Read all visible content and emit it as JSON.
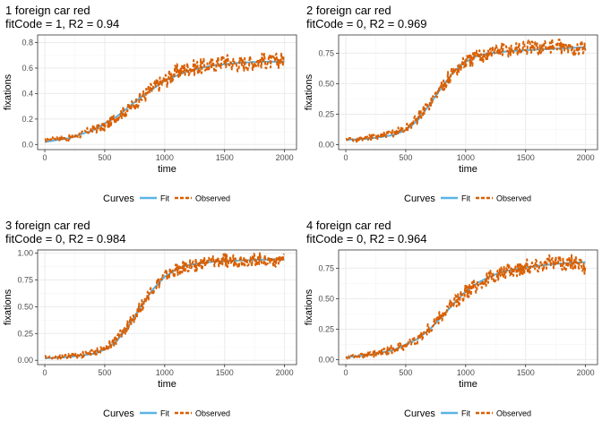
{
  "legend": {
    "title": "Curves",
    "fit_label": "Fit",
    "observed_label": "Observed"
  },
  "colors": {
    "fit": "#5ab4e5",
    "observed": "#d95f02",
    "panel_border": "#333333",
    "grid_major": "#ebebeb",
    "grid_minor": "#f5f5f5",
    "axis_text": "#4d4d4d"
  },
  "chart_data": [
    {
      "type": "line",
      "title": "1 foreign car red",
      "subtitle": "fitCode = 1, R2 = 0.94",
      "xlabel": "time",
      "ylabel": "fixations",
      "xlim": [
        -60,
        2100
      ],
      "ylim": [
        -0.04,
        0.86
      ],
      "xticks": [
        0,
        500,
        1000,
        1500,
        2000
      ],
      "yticks": [
        0.0,
        0.2,
        0.4,
        0.6,
        0.8
      ],
      "ytick_labels": [
        "0.0",
        "0.2",
        "0.4",
        "0.6",
        "0.8"
      ],
      "legend_position": "bottom",
      "grid": true,
      "fit": {
        "x": [
          0,
          200,
          400,
          600,
          800,
          1000,
          1200,
          1400,
          1600,
          1800,
          2000
        ],
        "y": [
          0.02,
          0.05,
          0.11,
          0.22,
          0.37,
          0.5,
          0.58,
          0.62,
          0.64,
          0.65,
          0.65
        ]
      },
      "observed": {
        "x": [
          0,
          100,
          200,
          300,
          400,
          500,
          600,
          700,
          800,
          900,
          1000,
          1100,
          1200,
          1300,
          1400,
          1500,
          1600,
          1700,
          1800,
          1900,
          2000
        ],
        "y": [
          0.03,
          0.05,
          0.05,
          0.08,
          0.12,
          0.14,
          0.22,
          0.28,
          0.36,
          0.44,
          0.5,
          0.57,
          0.6,
          0.61,
          0.62,
          0.66,
          0.63,
          0.64,
          0.66,
          0.65,
          0.67
        ]
      }
    },
    {
      "type": "line",
      "title": "2 foreign car red",
      "subtitle": "fitCode = 0, R2 = 0.969",
      "xlabel": "time",
      "ylabel": "fixations",
      "xlim": [
        -60,
        2100
      ],
      "ylim": [
        -0.04,
        0.9
      ],
      "xticks": [
        0,
        500,
        1000,
        1500,
        2000
      ],
      "yticks": [
        0.0,
        0.25,
        0.5,
        0.75
      ],
      "ytick_labels": [
        "0.00",
        "0.25",
        "0.50",
        "0.75"
      ],
      "legend_position": "bottom",
      "grid": true,
      "fit": {
        "x": [
          0,
          200,
          400,
          500,
          600,
          700,
          800,
          900,
          1000,
          1100,
          1200,
          1400,
          1600,
          1800,
          2000
        ],
        "y": [
          0.04,
          0.05,
          0.08,
          0.12,
          0.2,
          0.33,
          0.47,
          0.6,
          0.68,
          0.73,
          0.75,
          0.77,
          0.78,
          0.79,
          0.8
        ]
      },
      "observed": {
        "x": [
          0,
          100,
          200,
          300,
          400,
          500,
          600,
          700,
          800,
          900,
          1000,
          1100,
          1200,
          1300,
          1400,
          1500,
          1600,
          1700,
          1800,
          1900,
          2000
        ],
        "y": [
          0.05,
          0.04,
          0.06,
          0.07,
          0.1,
          0.13,
          0.22,
          0.34,
          0.48,
          0.6,
          0.68,
          0.72,
          0.76,
          0.78,
          0.78,
          0.8,
          0.79,
          0.81,
          0.8,
          0.78,
          0.8
        ]
      }
    },
    {
      "type": "line",
      "title": "3 foreign car red",
      "subtitle": "fitCode = 0, R2 = 0.984",
      "xlabel": "time",
      "ylabel": "fixations",
      "xlim": [
        -60,
        2100
      ],
      "ylim": [
        -0.04,
        1.03
      ],
      "xticks": [
        0,
        500,
        1000,
        1500,
        2000
      ],
      "yticks": [
        0.0,
        0.25,
        0.5,
        0.75,
        1.0
      ],
      "ytick_labels": [
        "0.00",
        "0.25",
        "0.50",
        "0.75",
        "1.00"
      ],
      "legend_position": "bottom",
      "grid": true,
      "fit": {
        "x": [
          0,
          200,
          400,
          500,
          600,
          700,
          800,
          900,
          1000,
          1100,
          1200,
          1400,
          1600,
          1800,
          2000
        ],
        "y": [
          0.02,
          0.03,
          0.06,
          0.1,
          0.18,
          0.32,
          0.5,
          0.66,
          0.78,
          0.85,
          0.89,
          0.92,
          0.93,
          0.94,
          0.94
        ]
      },
      "observed": {
        "x": [
          0,
          100,
          200,
          300,
          400,
          500,
          600,
          700,
          800,
          900,
          1000,
          1100,
          1200,
          1300,
          1400,
          1500,
          1600,
          1700,
          1800,
          1900,
          2000
        ],
        "y": [
          0.03,
          0.03,
          0.04,
          0.05,
          0.07,
          0.11,
          0.2,
          0.33,
          0.5,
          0.67,
          0.78,
          0.84,
          0.88,
          0.9,
          0.92,
          0.93,
          0.93,
          0.94,
          0.94,
          0.93,
          0.94
        ]
      }
    },
    {
      "type": "line",
      "title": "4 foreign car red",
      "subtitle": "fitCode = 0, R2 = 0.964",
      "xlabel": "time",
      "ylabel": "fixations",
      "xlim": [
        -60,
        2100
      ],
      "ylim": [
        -0.04,
        0.9
      ],
      "xticks": [
        0,
        500,
        1000,
        1500,
        2000
      ],
      "yticks": [
        0.0,
        0.25,
        0.5,
        0.75
      ],
      "ytick_labels": [
        "0.00",
        "0.25",
        "0.50",
        "0.75"
      ],
      "legend_position": "bottom",
      "grid": true,
      "fit": {
        "x": [
          0,
          200,
          400,
          600,
          700,
          800,
          900,
          1000,
          1100,
          1200,
          1300,
          1400,
          1600,
          1800,
          2000
        ],
        "y": [
          0.02,
          0.04,
          0.08,
          0.17,
          0.25,
          0.35,
          0.46,
          0.56,
          0.63,
          0.68,
          0.72,
          0.74,
          0.77,
          0.79,
          0.8
        ]
      },
      "observed": {
        "x": [
          0,
          100,
          200,
          300,
          400,
          500,
          600,
          700,
          800,
          900,
          1000,
          1100,
          1200,
          1300,
          1400,
          1500,
          1600,
          1700,
          1800,
          1900,
          2000
        ],
        "y": [
          0.02,
          0.03,
          0.04,
          0.06,
          0.09,
          0.12,
          0.17,
          0.26,
          0.36,
          0.46,
          0.55,
          0.62,
          0.67,
          0.71,
          0.74,
          0.76,
          0.78,
          0.8,
          0.79,
          0.8,
          0.76
        ]
      }
    }
  ]
}
